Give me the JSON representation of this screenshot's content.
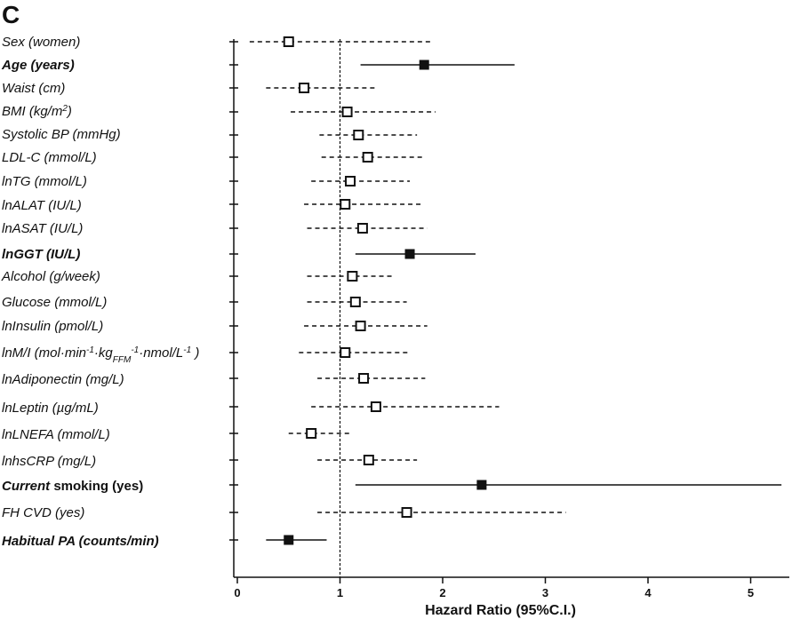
{
  "panel_letter": "C",
  "chart_data": {
    "type": "forest",
    "xlabel": "Hazard Ratio (95%C.I.)",
    "xlim": [
      0,
      5.5
    ],
    "x_ticks": [
      0,
      1,
      2,
      3,
      4,
      5
    ],
    "x_tick_labels": [
      "0",
      "1",
      "2",
      "3",
      "4",
      "5"
    ],
    "reference_line": 1,
    "legend": "none",
    "rows": [
      {
        "label": "Sex (women)",
        "hr": 0.5,
        "lo": 0.12,
        "hi": 1.88,
        "significant": false
      },
      {
        "label": "Age (years)",
        "hr": 1.82,
        "lo": 1.2,
        "hi": 2.7,
        "significant": true
      },
      {
        "label": "Waist (cm)",
        "hr": 0.65,
        "lo": 0.28,
        "hi": 1.35,
        "significant": false
      },
      {
        "label": "BMI (kg/m²)",
        "hr": 1.07,
        "lo": 0.52,
        "hi": 1.93,
        "significant": false
      },
      {
        "label": "Systolic BP (mmHg)",
        "hr": 1.18,
        "lo": 0.8,
        "hi": 1.75,
        "significant": false
      },
      {
        "label": "LDL-C (mmol/L)",
        "hr": 1.27,
        "lo": 0.82,
        "hi": 1.83,
        "significant": false
      },
      {
        "label": "lnTG (mmol/L)",
        "hr": 1.1,
        "lo": 0.72,
        "hi": 1.68,
        "significant": false
      },
      {
        "label": "lnALAT (IU/L)",
        "hr": 1.05,
        "lo": 0.65,
        "hi": 1.8,
        "significant": false
      },
      {
        "label": "lnASAT (IU/L)",
        "hr": 1.22,
        "lo": 0.68,
        "hi": 1.85,
        "significant": false
      },
      {
        "label": "lnGGT (IU/L)",
        "hr": 1.68,
        "lo": 1.15,
        "hi": 2.32,
        "significant": true
      },
      {
        "label": "Alcohol (g/week)",
        "hr": 1.12,
        "lo": 0.68,
        "hi": 1.52,
        "significant": false
      },
      {
        "label": "Glucose (mmol/L)",
        "hr": 1.15,
        "lo": 0.68,
        "hi": 1.65,
        "significant": false
      },
      {
        "label": "lnInsulin (pmol/L)",
        "hr": 1.2,
        "lo": 0.65,
        "hi": 1.85,
        "significant": false
      },
      {
        "label": "lnM/I (mol·min-1·kgFFM-1·nmol/L-1 )",
        "hr": 1.05,
        "lo": 0.6,
        "hi": 1.68,
        "significant": false
      },
      {
        "label": "lnAdiponectin (mg/L)",
        "hr": 1.23,
        "lo": 0.78,
        "hi": 1.83,
        "significant": false
      },
      {
        "label": "lnLeptin (µg/mL)",
        "hr": 1.35,
        "lo": 0.72,
        "hi": 2.55,
        "significant": false
      },
      {
        "label": "lnLNEFA (mmol/L)",
        "hr": 0.72,
        "lo": 0.5,
        "hi": 1.1,
        "significant": false
      },
      {
        "label": "lnhsCRP (mg/L)",
        "hr": 1.28,
        "lo": 0.78,
        "hi": 1.75,
        "significant": false
      },
      {
        "label": "Current smoking (yes)",
        "hr": 2.38,
        "lo": 1.15,
        "hi": 5.3,
        "significant": true
      },
      {
        "label": "FH CVD (yes)",
        "hr": 1.65,
        "lo": 0.78,
        "hi": 3.2,
        "significant": false
      },
      {
        "label": "Habitual PA (counts/min)",
        "hr": 0.5,
        "lo": 0.28,
        "hi": 0.87,
        "significant": true
      }
    ]
  }
}
